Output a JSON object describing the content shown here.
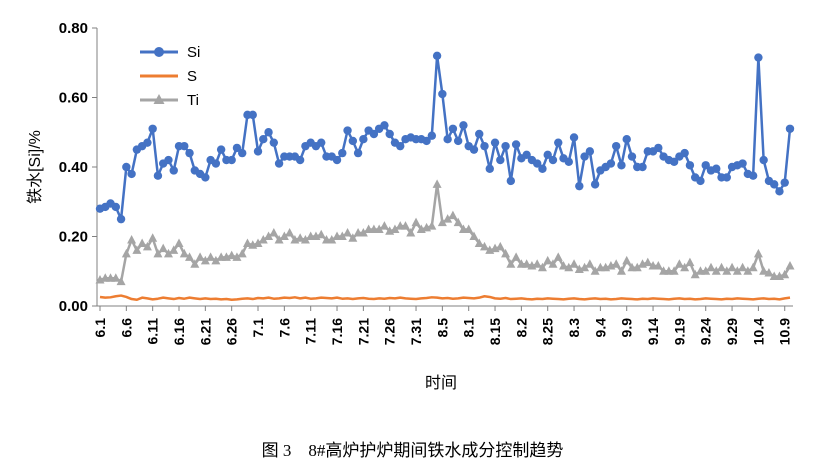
{
  "chart_data": {
    "type": "line",
    "title": "",
    "xlabel": "时间",
    "ylabel": "铁水[Si]/%",
    "ylim": [
      0,
      0.8
    ],
    "y_ticks": [
      "0.00",
      "0.20",
      "0.40",
      "0.60",
      "0.80"
    ],
    "grid": false,
    "legend_position": "top-left",
    "x_tick_labels": [
      "6.1",
      "6.6",
      "6.11",
      "6.16",
      "6.21",
      "6.26",
      "7.1",
      "7.6",
      "7.11",
      "7.16",
      "7.21",
      "7.26",
      "7.31",
      "8.5",
      "8.1",
      "8.15",
      "8.2",
      "8.25",
      "8.3",
      "9.4",
      "9.9",
      "9.14",
      "9.19",
      "9.24",
      "9.29",
      "10.4",
      "10.9"
    ],
    "x_tick_spacing": 5,
    "series": [
      {
        "name": "Si",
        "color": "#4472C4",
        "marker": "circle",
        "values": [
          0.28,
          0.285,
          0.295,
          0.285,
          0.25,
          0.4,
          0.38,
          0.45,
          0.46,
          0.47,
          0.51,
          0.375,
          0.41,
          0.42,
          0.39,
          0.46,
          0.46,
          0.44,
          0.39,
          0.38,
          0.37,
          0.42,
          0.41,
          0.45,
          0.42,
          0.42,
          0.455,
          0.44,
          0.55,
          0.55,
          0.445,
          0.48,
          0.5,
          0.47,
          0.41,
          0.43,
          0.43,
          0.43,
          0.42,
          0.46,
          0.47,
          0.46,
          0.47,
          0.43,
          0.43,
          0.42,
          0.44,
          0.505,
          0.475,
          0.44,
          0.48,
          0.505,
          0.495,
          0.51,
          0.52,
          0.495,
          0.47,
          0.46,
          0.48,
          0.485,
          0.48,
          0.48,
          0.475,
          0.49,
          0.72,
          0.61,
          0.48,
          0.51,
          0.475,
          0.52,
          0.46,
          0.45,
          0.495,
          0.46,
          0.395,
          0.47,
          0.42,
          0.46,
          0.36,
          0.465,
          0.425,
          0.435,
          0.42,
          0.41,
          0.395,
          0.435,
          0.42,
          0.47,
          0.425,
          0.415,
          0.485,
          0.345,
          0.43,
          0.445,
          0.35,
          0.39,
          0.4,
          0.41,
          0.46,
          0.405,
          0.48,
          0.43,
          0.4,
          0.4,
          0.445,
          0.445,
          0.455,
          0.43,
          0.42,
          0.415,
          0.43,
          0.44,
          0.405,
          0.37,
          0.36,
          0.405,
          0.39,
          0.395,
          0.37,
          0.37,
          0.4,
          0.405,
          0.41,
          0.38,
          0.375,
          0.715,
          0.42,
          0.36,
          0.35,
          0.33,
          0.355,
          0.51
        ]
      },
      {
        "name": "S",
        "color": "#ED7D31",
        "marker": "none",
        "values": [
          0.026,
          0.024,
          0.025,
          0.028,
          0.03,
          0.026,
          0.02,
          0.018,
          0.024,
          0.022,
          0.019,
          0.021,
          0.024,
          0.022,
          0.02,
          0.023,
          0.021,
          0.024,
          0.022,
          0.02,
          0.022,
          0.02,
          0.021,
          0.019,
          0.02,
          0.018,
          0.019,
          0.021,
          0.022,
          0.02,
          0.023,
          0.022,
          0.024,
          0.021,
          0.022,
          0.024,
          0.023,
          0.025,
          0.022,
          0.024,
          0.021,
          0.022,
          0.024,
          0.023,
          0.022,
          0.024,
          0.021,
          0.022,
          0.02,
          0.022,
          0.023,
          0.021,
          0.02,
          0.022,
          0.021,
          0.023,
          0.022,
          0.024,
          0.022,
          0.021,
          0.02,
          0.022,
          0.023,
          0.025,
          0.024,
          0.022,
          0.023,
          0.021,
          0.022,
          0.024,
          0.023,
          0.022,
          0.024,
          0.028,
          0.026,
          0.022,
          0.021,
          0.023,
          0.02,
          0.021,
          0.022,
          0.02,
          0.019,
          0.021,
          0.02,
          0.022,
          0.021,
          0.02,
          0.019,
          0.021,
          0.022,
          0.02,
          0.019,
          0.021,
          0.022,
          0.02,
          0.021,
          0.019,
          0.02,
          0.022,
          0.021,
          0.02,
          0.019,
          0.021,
          0.02,
          0.022,
          0.021,
          0.02,
          0.019,
          0.021,
          0.022,
          0.02,
          0.021,
          0.019,
          0.02,
          0.022,
          0.021,
          0.02,
          0.019,
          0.021,
          0.02,
          0.022,
          0.021,
          0.02,
          0.019,
          0.021,
          0.022,
          0.02,
          0.021,
          0.019,
          0.022,
          0.024
        ]
      },
      {
        "name": "Ti",
        "color": "#A5A5A5",
        "marker": "triangle",
        "values": [
          0.075,
          0.08,
          0.08,
          0.08,
          0.07,
          0.15,
          0.19,
          0.16,
          0.18,
          0.17,
          0.195,
          0.15,
          0.165,
          0.15,
          0.16,
          0.18,
          0.15,
          0.14,
          0.12,
          0.14,
          0.13,
          0.14,
          0.13,
          0.14,
          0.14,
          0.145,
          0.14,
          0.15,
          0.18,
          0.175,
          0.18,
          0.19,
          0.2,
          0.21,
          0.19,
          0.2,
          0.21,
          0.19,
          0.195,
          0.19,
          0.2,
          0.2,
          0.205,
          0.19,
          0.19,
          0.2,
          0.2,
          0.21,
          0.195,
          0.21,
          0.21,
          0.22,
          0.22,
          0.22,
          0.23,
          0.215,
          0.22,
          0.23,
          0.23,
          0.21,
          0.24,
          0.22,
          0.225,
          0.23,
          0.35,
          0.24,
          0.25,
          0.26,
          0.24,
          0.22,
          0.22,
          0.2,
          0.18,
          0.17,
          0.16,
          0.165,
          0.17,
          0.15,
          0.12,
          0.14,
          0.12,
          0.12,
          0.115,
          0.12,
          0.11,
          0.13,
          0.12,
          0.14,
          0.115,
          0.11,
          0.12,
          0.105,
          0.11,
          0.12,
          0.1,
          0.11,
          0.11,
          0.115,
          0.12,
          0.1,
          0.13,
          0.11,
          0.11,
          0.12,
          0.125,
          0.115,
          0.115,
          0.1,
          0.1,
          0.1,
          0.12,
          0.11,
          0.125,
          0.09,
          0.1,
          0.1,
          0.11,
          0.1,
          0.11,
          0.1,
          0.11,
          0.1,
          0.11,
          0.1,
          0.11,
          0.15,
          0.1,
          0.095,
          0.085,
          0.085,
          0.09,
          0.115
        ]
      }
    ]
  },
  "caption": "图 3　8#高炉护炉期间铁水成分控制趋势"
}
